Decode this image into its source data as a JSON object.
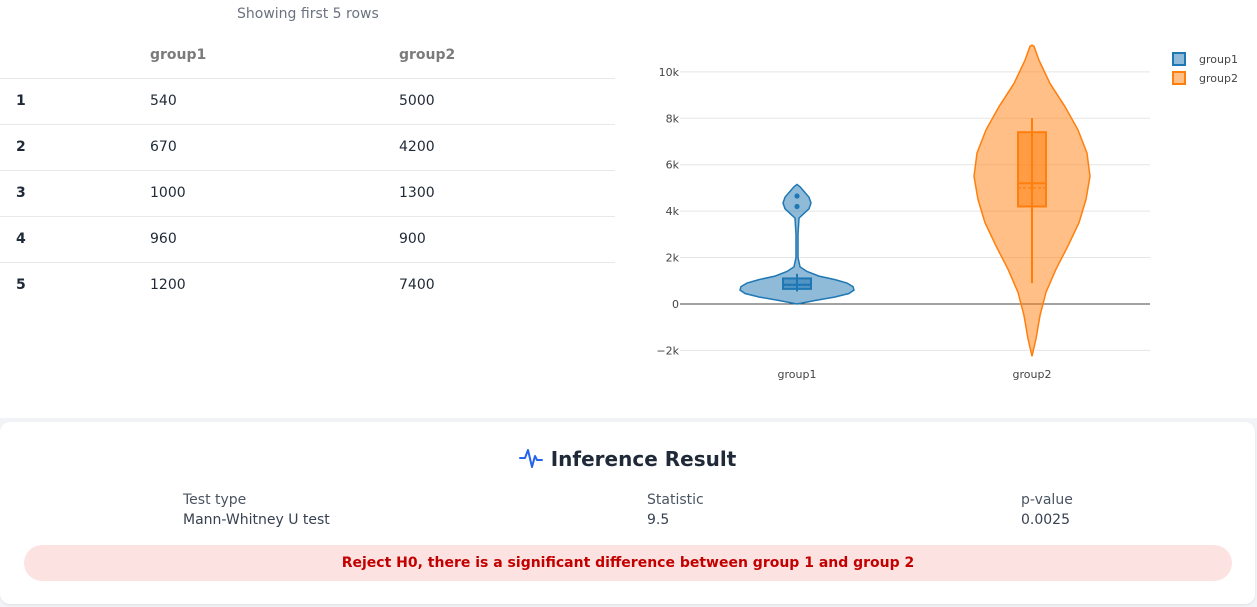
{
  "table": {
    "caption": "Showing first 5 rows",
    "headers": [
      "",
      "group1",
      "group2"
    ],
    "rows": [
      {
        "index": "1",
        "group1": "540",
        "group2": "5000"
      },
      {
        "index": "2",
        "group1": "670",
        "group2": "4200"
      },
      {
        "index": "3",
        "group1": "1000",
        "group2": "1300"
      },
      {
        "index": "4",
        "group1": "960",
        "group2": "900"
      },
      {
        "index": "5",
        "group1": "1200",
        "group2": "7400"
      }
    ]
  },
  "chart_data": {
    "type": "violin",
    "categories": [
      "group1",
      "group2"
    ],
    "y_ticks": [
      "−2k",
      "0",
      "2k",
      "4k",
      "6k",
      "8k",
      "10k"
    ],
    "ylim": [
      -2500,
      11200
    ],
    "grid": true,
    "legend_position": "top-right",
    "series": [
      {
        "name": "group1",
        "color": "#1f77b4",
        "box": {
          "q1": 650,
          "median": 830,
          "q3": 1100,
          "whisker_low": 540,
          "whisker_high": 1300,
          "mean": 800
        },
        "outliers": [
          4200,
          4650
        ]
      },
      {
        "name": "group2",
        "color": "#ff7f0e",
        "box": {
          "q1": 4200,
          "median": 5200,
          "q3": 7400,
          "whisker_low": 900,
          "whisker_high": 8000,
          "mean": 5000
        }
      }
    ]
  },
  "result": {
    "title": "Inference Result",
    "test_type_label": "Test type",
    "test_type_value": "Mann-Whitney U test",
    "statistic_label": "Statistic",
    "statistic_value": "9.5",
    "pvalue_label": "p-value",
    "pvalue_value": "0.0025",
    "verdict": "Reject H0, there is a significant difference between group 1 and group 2",
    "icon": "pulse-icon",
    "accent": "#2563eb",
    "verdict_color": "#c30000",
    "verdict_bg": "#fde2e2"
  }
}
